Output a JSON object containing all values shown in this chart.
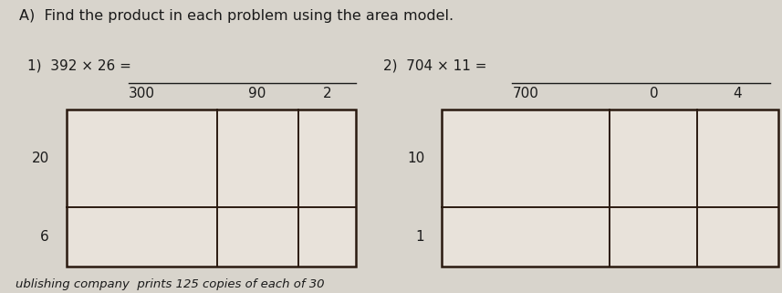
{
  "title": "A)  Find the product in each problem using the area model.",
  "problem1_label": "1)  392 × 26 =",
  "problem2_label": "2)  704 × 11 =",
  "grid1": {
    "col_labels": [
      "300",
      "90",
      "2"
    ],
    "row_labels": [
      "20",
      "6"
    ]
  },
  "grid2": {
    "col_labels": [
      "700",
      "0",
      "4"
    ],
    "row_labels": [
      "10",
      "1"
    ]
  },
  "footer_text": "ublishing company  prints 125 copies of each of 30",
  "bg_color": "#d8d4cc",
  "grid_fill": "#e8e2da",
  "font_color": "#1a1a1a",
  "line_color": "#2a1a10",
  "title_fontsize": 11.5,
  "label_fontsize": 11,
  "grid_label_fontsize": 11,
  "footer_fontsize": 9.5
}
